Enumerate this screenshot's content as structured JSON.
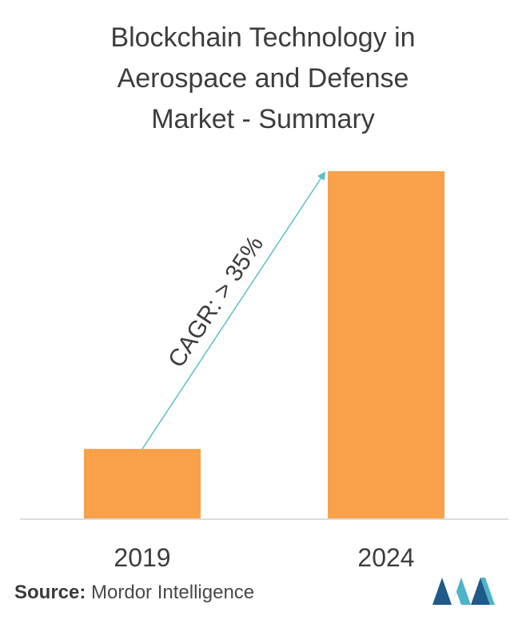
{
  "chart_data": {
    "type": "bar",
    "title_lines": [
      "Blockchain Technology in",
      "Aerospace and Defense",
      "Market - Summary"
    ],
    "categories": [
      "2019",
      "2024"
    ],
    "values": [
      20,
      100
    ],
    "ylim": [
      0,
      100
    ],
    "bar_color": "#f9a04a",
    "arrow_color": "#5bc0c8",
    "annotation": "CAGR: > 35%",
    "grid": false,
    "legend": "none"
  },
  "source": {
    "label": "Source:",
    "text": "Mordor Intelligence"
  },
  "logo": {
    "icon": "mordor-intelligence-logo",
    "colors": [
      "#1f5a8a",
      "#4fb3c8"
    ]
  }
}
